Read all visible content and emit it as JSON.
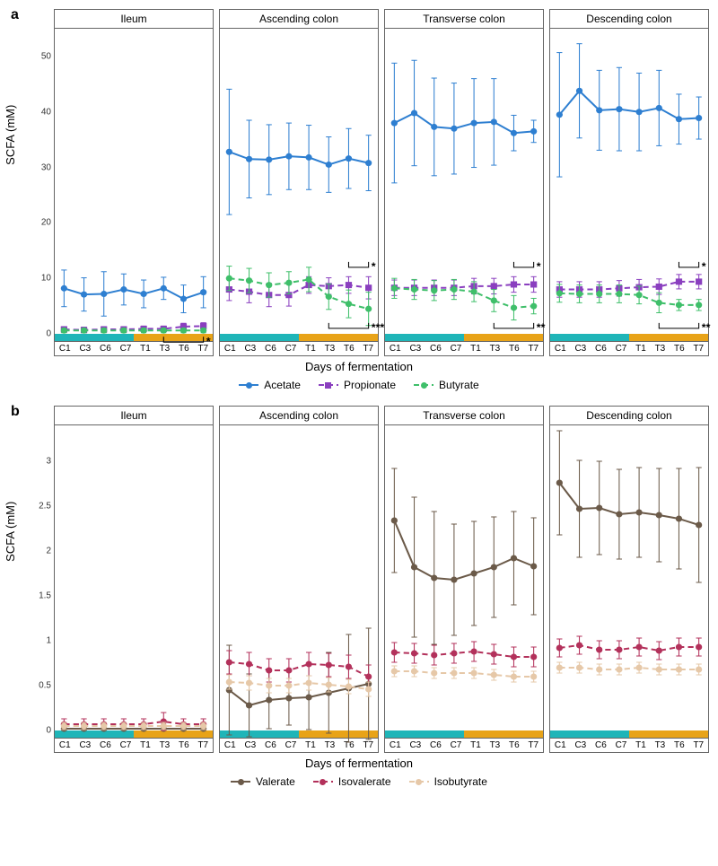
{
  "layout": {
    "panel_titles": [
      "Ileum",
      "Ascending colon",
      "Transverse colon",
      "Descending colon"
    ],
    "x_categories": [
      "C1",
      "C3",
      "C6",
      "C7",
      "T1",
      "T3",
      "T6",
      "T7"
    ],
    "x_axis_title": "Days of fermentation",
    "y_axis_title": "SCFA (mM)",
    "phase_colors": {
      "control": "#1fb5b8",
      "treatment": "#e8a318"
    },
    "background_color": "#ffffff",
    "border_color": "#666666",
    "error_bar_cap": 4
  },
  "row_a": {
    "label": "a",
    "ylim": [
      0,
      55
    ],
    "yticks": [
      0,
      10,
      20,
      30,
      40,
      50
    ],
    "series_meta": {
      "Acetate": {
        "color": "#2e7fd1",
        "dash": "",
        "marker": "circle"
      },
      "Propionate": {
        "color": "#8a3fbf",
        "dash": "6,4",
        "marker": "square"
      },
      "Butyrate": {
        "color": "#3fbf6a",
        "dash": "6,4",
        "marker": "circle"
      }
    },
    "significance": [
      {
        "panel": 0,
        "series": "Propionate",
        "x_from": 5,
        "x_to": 7,
        "label": "*",
        "bracket_y": -1.5
      },
      {
        "panel": 1,
        "series": "Propionate",
        "x_from": 6,
        "x_to": 7,
        "label": "*",
        "bracket_y": 12
      },
      {
        "panel": 1,
        "series": "Butyrate",
        "x_from": 5,
        "x_to": 7,
        "label": "***",
        "bracket_y": 1
      },
      {
        "panel": 2,
        "series": "Propionate",
        "x_from": 6,
        "x_to": 7,
        "label": "*",
        "bracket_y": 12
      },
      {
        "panel": 2,
        "series": "Butyrate",
        "x_from": 5,
        "x_to": 7,
        "label": "**",
        "bracket_y": 1
      },
      {
        "panel": 3,
        "series": "Propionate",
        "x_from": 6,
        "x_to": 7,
        "label": "*",
        "bracket_y": 12
      },
      {
        "panel": 3,
        "series": "Butyrate",
        "x_from": 5,
        "x_to": 7,
        "label": "**",
        "bracket_y": 1
      }
    ],
    "panels": [
      {
        "Acetate": {
          "y": [
            8.2,
            7.1,
            7.2,
            8.0,
            7.2,
            8.2,
            6.3,
            7.5
          ],
          "err": [
            3.3,
            3.0,
            4.0,
            2.8,
            2.5,
            2.0,
            2.5,
            2.8
          ]
        },
        "Propionate": {
          "y": [
            0.8,
            0.7,
            0.8,
            0.8,
            0.9,
            0.9,
            1.3,
            1.4
          ],
          "err": [
            0.5,
            0.5,
            0.5,
            0.5,
            0.5,
            0.5,
            0.6,
            0.6
          ]
        },
        "Butyrate": {
          "y": [
            0.6,
            0.6,
            0.6,
            0.6,
            0.6,
            0.6,
            0.6,
            0.6
          ],
          "err": [
            0.4,
            0.4,
            0.4,
            0.4,
            0.4,
            0.4,
            0.4,
            0.4
          ]
        }
      },
      {
        "Acetate": {
          "y": [
            32.8,
            31.5,
            31.4,
            32.0,
            31.8,
            30.5,
            31.6,
            30.8
          ],
          "err": [
            11.3,
            7.0,
            6.3,
            6.0,
            5.8,
            5.0,
            5.4,
            5.0
          ]
        },
        "Propionate": {
          "y": [
            8.0,
            7.6,
            7.0,
            7.0,
            8.8,
            8.6,
            8.8,
            8.3
          ],
          "err": [
            2.0,
            2.0,
            2.1,
            2.0,
            1.5,
            1.5,
            1.5,
            2.0
          ]
        },
        "Butyrate": {
          "y": [
            10.0,
            9.6,
            8.8,
            9.2,
            9.8,
            6.7,
            5.4,
            4.5
          ],
          "err": [
            2.2,
            2.2,
            2.2,
            2.0,
            2.2,
            2.3,
            2.5,
            3.0
          ]
        }
      },
      {
        "Acetate": {
          "y": [
            38.0,
            39.8,
            37.3,
            37.0,
            38.0,
            38.2,
            36.2,
            36.5
          ],
          "err": [
            10.8,
            9.5,
            8.8,
            8.2,
            8.0,
            7.8,
            3.2,
            2.0
          ]
        },
        "Propionate": {
          "y": [
            8.3,
            8.3,
            8.3,
            8.3,
            8.6,
            8.6,
            8.9,
            8.9
          ],
          "err": [
            1.4,
            1.4,
            1.4,
            1.4,
            1.4,
            1.4,
            1.4,
            1.4
          ]
        },
        "Butyrate": {
          "y": [
            8.2,
            8.0,
            7.8,
            8.0,
            7.6,
            6.0,
            4.7,
            5.0
          ],
          "err": [
            1.8,
            1.8,
            1.8,
            1.8,
            1.8,
            2.0,
            2.2,
            1.4
          ]
        }
      },
      {
        "Acetate": {
          "y": [
            39.5,
            43.8,
            40.3,
            40.5,
            40.0,
            40.7,
            38.7,
            38.9
          ],
          "err": [
            11.2,
            8.5,
            7.2,
            7.5,
            7.0,
            6.8,
            4.5,
            3.8
          ]
        },
        "Propionate": {
          "y": [
            8.0,
            8.0,
            8.0,
            8.2,
            8.4,
            8.5,
            9.4,
            9.4
          ],
          "err": [
            1.4,
            1.4,
            1.4,
            1.4,
            1.4,
            1.4,
            1.3,
            1.3
          ]
        },
        "Butyrate": {
          "y": [
            7.3,
            7.2,
            7.2,
            7.2,
            7.0,
            5.6,
            5.2,
            5.2
          ],
          "err": [
            1.6,
            1.6,
            1.6,
            1.6,
            1.6,
            1.8,
            1.0,
            1.0
          ]
        }
      }
    ]
  },
  "row_b": {
    "label": "b",
    "ylim": [
      0,
      3.4
    ],
    "yticks": [
      0,
      0.5,
      1.0,
      1.5,
      2.0,
      2.5,
      3.0
    ],
    "series_meta": {
      "Valerate": {
        "color": "#6b5a49",
        "dash": "",
        "marker": "circle"
      },
      "Isovalerate": {
        "color": "#b3315b",
        "dash": "6,4",
        "marker": "circle"
      },
      "Isobutyrate": {
        "color": "#e6c8a8",
        "dash": "6,4",
        "marker": "circle"
      }
    },
    "significance": [],
    "panels": [
      {
        "Valerate": {
          "y": [
            0.02,
            0.02,
            0.02,
            0.02,
            0.02,
            0.02,
            0.02,
            0.02
          ],
          "err": [
            0.02,
            0.02,
            0.02,
            0.02,
            0.02,
            0.02,
            0.02,
            0.02
          ]
        },
        "Isovalerate": {
          "y": [
            0.07,
            0.07,
            0.07,
            0.07,
            0.07,
            0.1,
            0.07,
            0.07
          ],
          "err": [
            0.06,
            0.06,
            0.06,
            0.06,
            0.06,
            0.1,
            0.06,
            0.06
          ]
        },
        "Isobutyrate": {
          "y": [
            0.05,
            0.05,
            0.05,
            0.05,
            0.05,
            0.05,
            0.05,
            0.05
          ],
          "err": [
            0.04,
            0.04,
            0.04,
            0.04,
            0.04,
            0.04,
            0.04,
            0.04
          ]
        }
      },
      {
        "Valerate": {
          "y": [
            0.45,
            0.28,
            0.34,
            0.36,
            0.37,
            0.42,
            0.47,
            0.52
          ],
          "err": [
            0.5,
            0.35,
            0.32,
            0.3,
            0.36,
            0.45,
            0.6,
            0.62
          ]
        },
        "Isovalerate": {
          "y": [
            0.76,
            0.74,
            0.67,
            0.67,
            0.74,
            0.73,
            0.71,
            0.6
          ],
          "err": [
            0.13,
            0.13,
            0.13,
            0.13,
            0.13,
            0.13,
            0.13,
            0.13
          ]
        },
        "Isobutyrate": {
          "y": [
            0.54,
            0.53,
            0.5,
            0.5,
            0.53,
            0.51,
            0.49,
            0.46
          ],
          "err": [
            0.08,
            0.08,
            0.08,
            0.08,
            0.08,
            0.08,
            0.08,
            0.08
          ]
        }
      },
      {
        "Valerate": {
          "y": [
            2.34,
            1.82,
            1.7,
            1.68,
            1.75,
            1.82,
            1.92,
            1.83
          ],
          "err": [
            0.58,
            0.78,
            0.74,
            0.62,
            0.58,
            0.56,
            0.52,
            0.54
          ]
        },
        "Isovalerate": {
          "y": [
            0.87,
            0.86,
            0.84,
            0.86,
            0.88,
            0.85,
            0.82,
            0.82
          ],
          "err": [
            0.11,
            0.11,
            0.11,
            0.11,
            0.11,
            0.11,
            0.11,
            0.11
          ]
        },
        "Isobutyrate": {
          "y": [
            0.66,
            0.66,
            0.64,
            0.64,
            0.64,
            0.62,
            0.6,
            0.6
          ],
          "err": [
            0.06,
            0.06,
            0.06,
            0.06,
            0.06,
            0.06,
            0.06,
            0.06
          ]
        }
      },
      {
        "Valerate": {
          "y": [
            2.76,
            2.47,
            2.48,
            2.41,
            2.43,
            2.4,
            2.36,
            2.29
          ],
          "err": [
            0.58,
            0.54,
            0.52,
            0.5,
            0.5,
            0.52,
            0.56,
            0.64
          ]
        },
        "Isovalerate": {
          "y": [
            0.92,
            0.95,
            0.9,
            0.9,
            0.93,
            0.89,
            0.93,
            0.93
          ],
          "err": [
            0.1,
            0.1,
            0.1,
            0.1,
            0.1,
            0.1,
            0.1,
            0.1
          ]
        },
        "Isobutyrate": {
          "y": [
            0.7,
            0.7,
            0.68,
            0.68,
            0.7,
            0.68,
            0.68,
            0.68
          ],
          "err": [
            0.06,
            0.06,
            0.06,
            0.06,
            0.06,
            0.06,
            0.06,
            0.06
          ]
        }
      }
    ]
  },
  "legend_a": [
    "Acetate",
    "Propionate",
    "Butyrate"
  ],
  "legend_b": [
    "Valerate",
    "Isovalerate",
    "Isobutyrate"
  ]
}
